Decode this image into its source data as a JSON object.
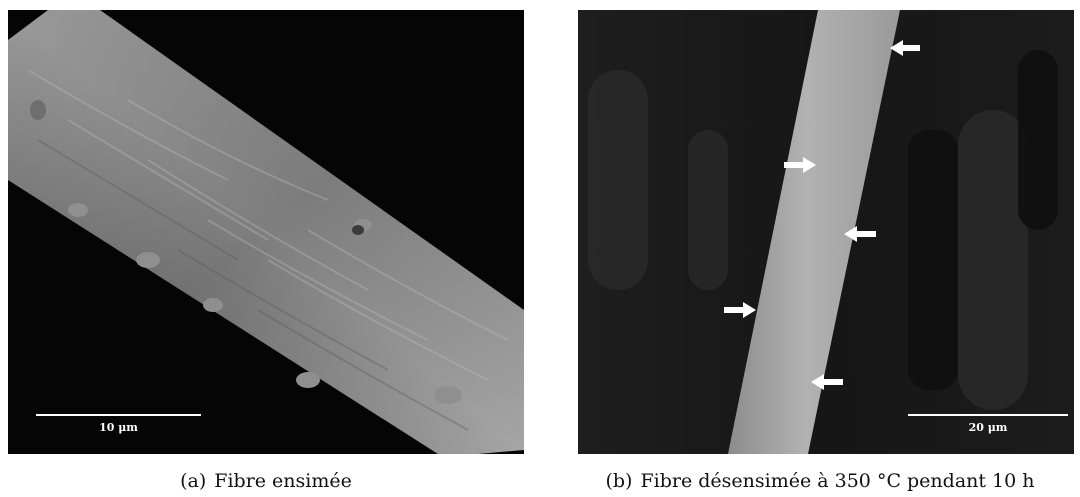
{
  "figure": {
    "panel_a": {
      "label": "(a)",
      "caption": "Fibre ensimée",
      "scale_bar": "10 μm"
    },
    "panel_b": {
      "label": "(b)",
      "caption": "Fibre désensimée à 350 °C pendant 10 h",
      "scale_bar": "20 μm",
      "arrow_count": 5
    }
  },
  "colors": {
    "background": "#050505",
    "fiber_a": "#8a8a8a",
    "fiber_b": "#aaaaaa",
    "arrow": "#ffffff"
  }
}
